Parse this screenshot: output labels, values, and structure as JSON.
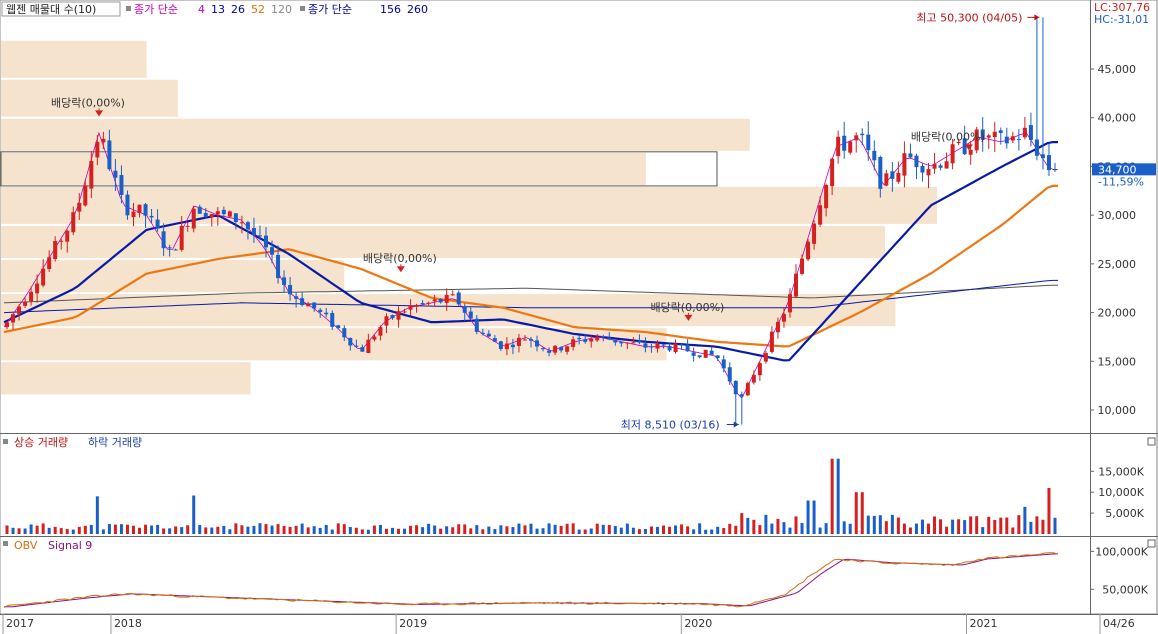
{
  "main_panel": {
    "legend": {
      "title": "웹젠 매물대 수(10)",
      "ma_label": "종가 단순",
      "ma_periods": [
        {
          "value": "4",
          "color": "#c000c0"
        },
        {
          "value": "13",
          "color": "#0000a0"
        },
        {
          "value": "26",
          "color": "#0000a0"
        },
        {
          "value": "52",
          "color": "#e07000"
        },
        {
          "value": "120",
          "color": "#8a8a8a"
        }
      ],
      "ma2_label": "종가 단순",
      "ma2_periods": [
        {
          "value": "156",
          "color": "#0000a0"
        },
        {
          "value": "260",
          "color": "#0000a0"
        }
      ]
    },
    "top_right": {
      "lc": "LC:307,76",
      "hc": "HC:-31,01"
    },
    "current_price": "34,700",
    "current_change": "-11,59%",
    "high_annotation": "최고 50,300 (04/05)",
    "low_annotation": "최저 8,510 (03/16)",
    "dividend_label": "배당락(0,00%)"
  },
  "volume_panel": {
    "legend_up": "상승 거래량",
    "legend_down": "하락 거래량"
  },
  "obv_panel": {
    "legend_obv": "OBV",
    "legend_signal": "Signal 9"
  },
  "x_axis": {
    "labels": [
      "2017",
      "2018",
      "2019",
      "2020",
      "2021",
      "04/26"
    ]
  },
  "colors": {
    "up": "#d42020",
    "down": "#1a5fc8",
    "ma_blue": "#0a1aa8",
    "ma_orange": "#ee7711",
    "ma_magenta": "#c000c0",
    "vp_fill": "#f5e3cd",
    "axis": "#333333",
    "panel_bg": "#ffffff"
  },
  "chart_data": [
    {
      "type": "candlestick",
      "title": "웹젠 매물대 수(10)",
      "ylim": [
        7000,
        50000
      ],
      "y_ticks": [
        "10,000",
        "15,000",
        "20,000",
        "25,000",
        "30,000",
        "35,000",
        "40,000",
        "45,000"
      ],
      "y_tick_values": [
        10000,
        15000,
        20000,
        25000,
        30000,
        35000,
        40000,
        45000
      ],
      "x_range": [
        "2017-08",
        "2021-04-26"
      ],
      "close_path": [
        [
          "2017-08",
          18500
        ],
        [
          "2017-09",
          22000
        ],
        [
          "2017-10",
          26000
        ],
        [
          "2017-11",
          30000
        ],
        [
          "2017-12",
          38500
        ],
        [
          "2018-01",
          31000
        ],
        [
          "2018-02",
          30000
        ],
        [
          "2018-03",
          26000
        ],
        [
          "2018-04",
          31000
        ],
        [
          "2018-05",
          30000
        ],
        [
          "2018-06",
          29500
        ],
        [
          "2018-07",
          26500
        ],
        [
          "2018-08",
          22000
        ],
        [
          "2018-09",
          20500
        ],
        [
          "2018-10",
          18500
        ],
        [
          "2018-11",
          16000
        ],
        [
          "2018-12",
          19000
        ],
        [
          "2019-01",
          20500
        ],
        [
          "2019-02",
          21000
        ],
        [
          "2019-03",
          21500
        ],
        [
          "2019-04",
          18000
        ],
        [
          "2019-05",
          16500
        ],
        [
          "2019-06",
          17500
        ],
        [
          "2019-07",
          16000
        ],
        [
          "2019-08",
          17000
        ],
        [
          "2019-09",
          17500
        ],
        [
          "2019-10",
          17000
        ],
        [
          "2019-11",
          16500
        ],
        [
          "2019-12",
          16500
        ],
        [
          "2020-01",
          16000
        ],
        [
          "2020-02",
          15500
        ],
        [
          "2020-03",
          11000
        ],
        [
          "2020-04",
          16000
        ],
        [
          "2020-05",
          21000
        ],
        [
          "2020-06",
          29000
        ],
        [
          "2020-07",
          37000
        ],
        [
          "2020-08",
          38000
        ],
        [
          "2020-09",
          33000
        ],
        [
          "2020-10",
          36000
        ],
        [
          "2020-11",
          35000
        ],
        [
          "2020-12",
          36500
        ],
        [
          "2021-01",
          38000
        ],
        [
          "2021-02",
          37500
        ],
        [
          "2021-03",
          38500
        ],
        [
          "2021-04",
          34700
        ]
      ],
      "moving_averages": {
        "ma26": [
          [
            "2017-08",
            19000
          ],
          [
            "2017-11",
            22500
          ],
          [
            "2018-02",
            28500
          ],
          [
            "2018-05",
            30000
          ],
          [
            "2018-08",
            26000
          ],
          [
            "2018-11",
            21000
          ],
          [
            "2019-02",
            19000
          ],
          [
            "2019-05",
            19300
          ],
          [
            "2019-08",
            17800
          ],
          [
            "2019-11",
            17000
          ],
          [
            "2020-02",
            16500
          ],
          [
            "2020-05",
            15000
          ],
          [
            "2020-08",
            23000
          ],
          [
            "2020-11",
            31000
          ],
          [
            "2021-02",
            35000
          ],
          [
            "2021-04",
            37500
          ]
        ],
        "ma52": [
          [
            "2017-08",
            18000
          ],
          [
            "2017-11",
            19500
          ],
          [
            "2018-02",
            24000
          ],
          [
            "2018-05",
            25500
          ],
          [
            "2018-08",
            26500
          ],
          [
            "2018-11",
            24500
          ],
          [
            "2019-02",
            21500
          ],
          [
            "2019-05",
            20500
          ],
          [
            "2019-08",
            18500
          ],
          [
            "2019-11",
            18000
          ],
          [
            "2020-02",
            17000
          ],
          [
            "2020-05",
            16500
          ],
          [
            "2020-08",
            20000
          ],
          [
            "2020-11",
            24000
          ],
          [
            "2021-02",
            29000
          ],
          [
            "2021-04",
            33000
          ]
        ],
        "ma156": [
          [
            "2017-08",
            20000
          ],
          [
            "2018-06",
            21000
          ],
          [
            "2019-06",
            20500
          ],
          [
            "2020-06",
            20500
          ],
          [
            "2021-04",
            23300
          ]
        ],
        "ma260": [
          [
            "2017-08",
            21000
          ],
          [
            "2018-06",
            22000
          ],
          [
            "2019-06",
            22500
          ],
          [
            "2020-06",
            21500
          ],
          [
            "2021-04",
            22800
          ]
        ]
      },
      "volume_profile_bins": [
        {
          "price_low": 44000,
          "price_high": 48000,
          "relative": 0.14
        },
        {
          "price_low": 40000,
          "price_high": 44000,
          "relative": 0.17
        },
        {
          "price_low": 36500,
          "price_high": 40000,
          "relative": 0.72
        },
        {
          "price_low": 33000,
          "price_high": 36500,
          "relative": 0.62
        },
        {
          "price_low": 29000,
          "price_high": 33000,
          "relative": 0.9
        },
        {
          "price_low": 25500,
          "price_high": 29000,
          "relative": 0.85
        },
        {
          "price_low": 22000,
          "price_high": 25500,
          "relative": 0.33
        },
        {
          "price_low": 18500,
          "price_high": 22000,
          "relative": 0.86
        },
        {
          "price_low": 15000,
          "price_high": 18500,
          "relative": 0.64
        },
        {
          "price_low": 11500,
          "price_high": 15000,
          "relative": 0.24
        }
      ],
      "highlighted_bin": {
        "price_low": 33000,
        "price_high": 36500
      },
      "high": {
        "value": 50300,
        "date": "04/05"
      },
      "low": {
        "value": 8510,
        "date": "03/16"
      },
      "dividends": [
        "2017-12",
        "2019-01",
        "2020-01",
        "2021-01"
      ]
    },
    {
      "type": "bar",
      "title": "상승 거래량 하락 거래량",
      "y_ticks": [
        "5,000K",
        "10,000K",
        "15,000K"
      ],
      "y_tick_values": [
        5000,
        10000,
        15000
      ],
      "ylim": [
        0,
        22000
      ],
      "highlights": [
        [
          "2017-12",
          9000
        ],
        [
          "2018-04",
          9200
        ],
        [
          "2020-03",
          5000
        ],
        [
          "2020-06",
          8000
        ],
        [
          "2020-07",
          18000
        ],
        [
          "2020-08",
          10000
        ],
        [
          "2021-03",
          6500
        ],
        [
          "2021-04",
          11000
        ]
      ]
    },
    {
      "type": "line",
      "title": "OBV Signal 9",
      "y_ticks": [
        "50,000K",
        "100,000K"
      ],
      "y_tick_values": [
        50000,
        100000
      ],
      "ylim": [
        20000,
        115000
      ],
      "obv_path": [
        [
          "2017-08",
          27000
        ],
        [
          "2017-11",
          38000
        ],
        [
          "2018-01",
          44000
        ],
        [
          "2018-06",
          38000
        ],
        [
          "2019-01",
          30000
        ],
        [
          "2019-06",
          32000
        ],
        [
          "2020-01",
          31000
        ],
        [
          "2020-03",
          28000
        ],
        [
          "2020-05",
          45000
        ],
        [
          "2020-06",
          70000
        ],
        [
          "2020-07",
          90000
        ],
        [
          "2020-09",
          85000
        ],
        [
          "2020-12",
          82000
        ],
        [
          "2021-01",
          90000
        ],
        [
          "2021-04",
          97000
        ]
      ]
    }
  ]
}
